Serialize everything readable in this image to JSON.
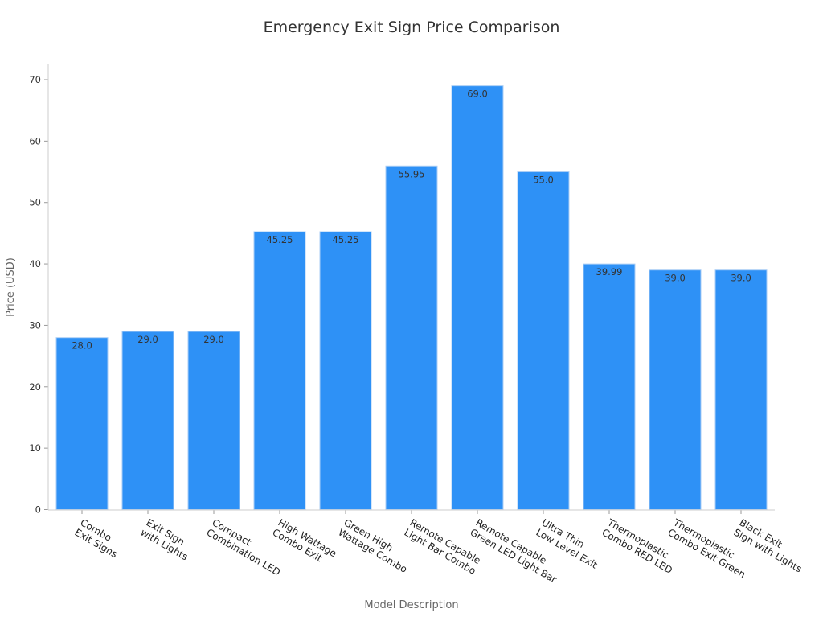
{
  "chart_data": {
    "type": "bar",
    "title": "Emergency Exit Sign Price Comparison",
    "xlabel": "Model Description",
    "ylabel": "Price (USD)",
    "ylim": [
      0,
      70
    ],
    "yticks": [
      0,
      10,
      20,
      30,
      40,
      50,
      60,
      70
    ],
    "grid": false,
    "categories": [
      [
        "Combo",
        "Exit Signs"
      ],
      [
        "Exit Sign",
        "with Lights"
      ],
      [
        "Compact",
        "Combination LED"
      ],
      [
        "High Wattage",
        "Combo Exit"
      ],
      [
        "Green High",
        "Wattage Combo"
      ],
      [
        "Remote Capable",
        "Light Bar Combo"
      ],
      [
        "Remote Capable",
        "Green LED Light Bar"
      ],
      [
        "Ultra Thin",
        "Low Level Exit"
      ],
      [
        "Thermoplastic",
        "Combo RED LED"
      ],
      [
        "Thermoplastic",
        "Combo Exit Green"
      ],
      [
        "Black Exit",
        "Sign with Lights"
      ]
    ],
    "values": [
      28.0,
      29.0,
      29.0,
      45.25,
      45.25,
      55.95,
      69.0,
      55.0,
      39.99,
      39.0,
      39.0
    ],
    "data_labels": [
      "28.0",
      "29.0",
      "29.0",
      "45.25",
      "45.25",
      "55.95",
      "69.0",
      "55.0",
      "39.99",
      "39.0",
      "39.0"
    ],
    "bar_color": "#2e91f6"
  }
}
